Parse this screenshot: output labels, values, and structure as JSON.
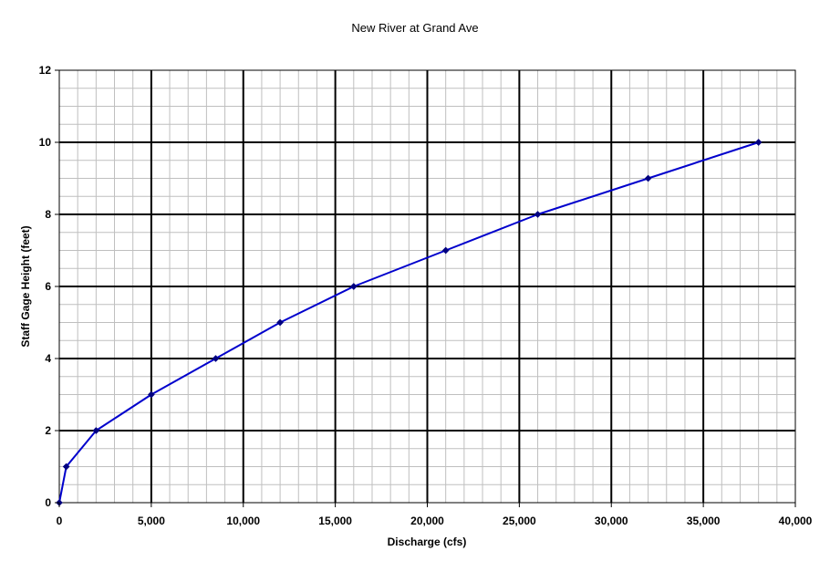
{
  "chart_data": {
    "type": "line",
    "title": "New River at Grand Ave",
    "xlabel": "Discharge (cfs)",
    "ylabel": "Staff Gage Height (feet)",
    "xlim": [
      0,
      40000
    ],
    "ylim": [
      0,
      12
    ],
    "x_ticks": [
      0,
      5000,
      10000,
      15000,
      20000,
      25000,
      30000,
      35000,
      40000
    ],
    "x_tick_labels": [
      "0",
      "5,000",
      "10,000",
      "15,000",
      "20,000",
      "25,000",
      "30,000",
      "35,000",
      "40,000"
    ],
    "y_ticks": [
      0,
      2,
      4,
      6,
      8,
      10,
      12
    ],
    "y_tick_labels": [
      "0",
      "2",
      "4",
      "6",
      "8",
      "10",
      "12"
    ],
    "grid": {
      "major": true,
      "minor": true,
      "major_color": "#000000",
      "minor_color": "#bfbfbf"
    },
    "legend": "none",
    "series": [
      {
        "color": "#0000cc",
        "marker": "diamond",
        "x": [
          0,
          380,
          2000,
          5000,
          8500,
          12000,
          16000,
          21000,
          26000,
          32000,
          38000
        ],
        "y": [
          0,
          1,
          2,
          3,
          4,
          5,
          6,
          7,
          8,
          9,
          10
        ]
      }
    ]
  }
}
